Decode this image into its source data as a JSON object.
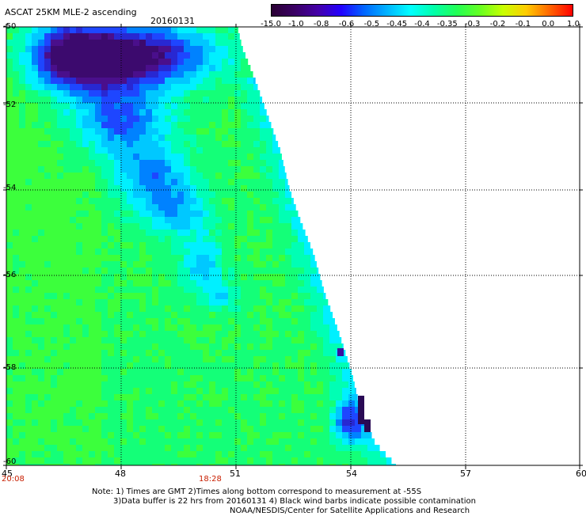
{
  "header": {
    "title": "ASCAT 25KM MLE-2 ascending",
    "date": "20160131"
  },
  "colorbar": {
    "labels": [
      "-15.0",
      "-1.0",
      "-0.8",
      "-0.6",
      "-0.5",
      "-0.45",
      "-0.4",
      "-0.35",
      "-0.3",
      "-0.2",
      "-0.1",
      "0.0",
      "1.0"
    ],
    "colors": [
      "#2a0033",
      "#3a0064",
      "#4400a8",
      "#2200ff",
      "#0066ff",
      "#00b4ff",
      "#00ffff",
      "#00ffaa",
      "#22ff55",
      "#66ff22",
      "#c8ff00",
      "#ffcc00",
      "#ff6600",
      "#ff0000"
    ]
  },
  "axes": {
    "x_ticks": [
      "45",
      "48",
      "51",
      "54",
      "57",
      "60"
    ],
    "y_ticks": [
      "-50",
      "-52",
      "-54",
      "-56",
      "-58",
      "-60"
    ],
    "time_labels": [
      "20:08",
      "18:28"
    ]
  },
  "map_data": {
    "lon_range": [
      45,
      60
    ],
    "lat_range": [
      -60,
      -50
    ],
    "color_scale": [
      "#3c0a6e",
      "#4a0f8c",
      "#2828d2",
      "#1e46ff",
      "#0082ff",
      "#00c8ff",
      "#00f0ff",
      "#00ffb4",
      "#14ff78",
      "#3cff3c",
      "#78ff28"
    ]
  },
  "notes": {
    "line1": "Note: 1) Times are GMT 2)Times along bottom correspond to measurement at -55S",
    "line2": "3)Data buffer is 22 hrs from 20160131 4) Black wind barbs indicate possible contamination",
    "line3": "NOAA/NESDIS/Center for Satellite Applications and Research"
  }
}
